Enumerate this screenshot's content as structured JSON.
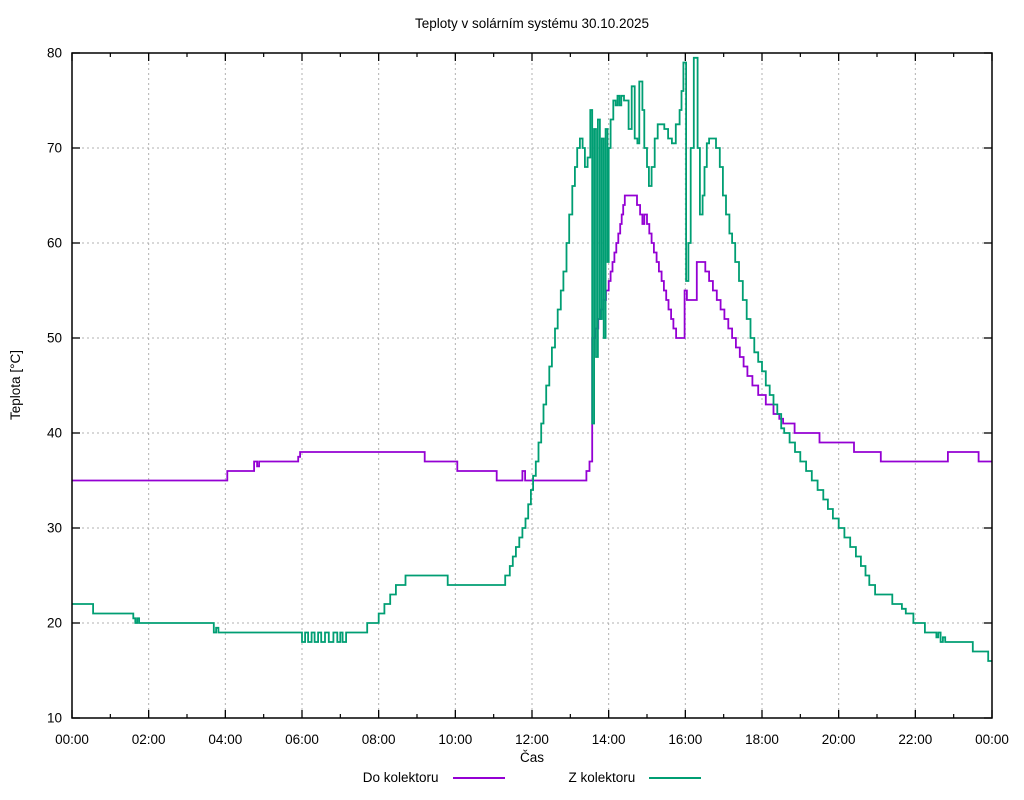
{
  "title": "Teploty v solárním systému 30.10.2025",
  "legend": {
    "items": [
      {
        "label": "Do kolektoru",
        "color": "#9400d3"
      },
      {
        "label": "Z kolektoru",
        "color": "#009e73"
      }
    ]
  },
  "chart_data": {
    "type": "line",
    "step_mode": "post",
    "title": "Teploty v solárním systému 30.10.2025",
    "xlabel": "Čas",
    "ylabel": "Teplota [°C]",
    "x_unit": "hours",
    "xlim": [
      0,
      24
    ],
    "ylim": [
      10,
      80
    ],
    "grid": true,
    "grid_color": "#b0b0b0",
    "legend_position": "bottom-center",
    "x_ticks": [
      [
        0,
        "00:00"
      ],
      [
        2,
        "02:00"
      ],
      [
        4,
        "04:00"
      ],
      [
        6,
        "06:00"
      ],
      [
        8,
        "08:00"
      ],
      [
        10,
        "10:00"
      ],
      [
        12,
        "12:00"
      ],
      [
        14,
        "14:00"
      ],
      [
        16,
        "16:00"
      ],
      [
        18,
        "18:00"
      ],
      [
        20,
        "20:00"
      ],
      [
        22,
        "22:00"
      ],
      [
        24,
        "00:00"
      ]
    ],
    "x_minor_ticks": [
      1,
      3,
      5,
      7,
      9,
      11,
      13,
      15,
      17,
      19,
      21,
      23
    ],
    "y_ticks": [
      10,
      20,
      30,
      40,
      50,
      60,
      70,
      80
    ],
    "series": [
      {
        "name": "Do kolektoru",
        "color": "#9400d3",
        "points": [
          [
            0,
            35
          ],
          [
            4.05,
            36
          ],
          [
            4.75,
            37
          ],
          [
            4.83,
            36.5
          ],
          [
            4.88,
            37
          ],
          [
            5.9,
            37.5
          ],
          [
            5.95,
            38
          ],
          [
            9.2,
            37
          ],
          [
            10.05,
            36
          ],
          [
            11.08,
            35
          ],
          [
            11.75,
            36
          ],
          [
            11.82,
            35
          ],
          [
            13.42,
            36
          ],
          [
            13.5,
            37
          ],
          [
            13.57,
            50
          ],
          [
            13.65,
            51
          ],
          [
            13.73,
            52
          ],
          [
            13.8,
            53
          ],
          [
            13.87,
            54
          ],
          [
            13.93,
            55
          ],
          [
            14.0,
            56
          ],
          [
            14.05,
            57
          ],
          [
            14.1,
            58
          ],
          [
            14.15,
            59
          ],
          [
            14.2,
            60
          ],
          [
            14.25,
            61
          ],
          [
            14.3,
            62
          ],
          [
            14.34,
            63
          ],
          [
            14.38,
            64
          ],
          [
            14.42,
            65
          ],
          [
            14.74,
            64
          ],
          [
            14.82,
            63
          ],
          [
            14.88,
            62
          ],
          [
            14.93,
            63
          ],
          [
            15.0,
            62
          ],
          [
            15.06,
            61
          ],
          [
            15.12,
            60
          ],
          [
            15.18,
            59
          ],
          [
            15.25,
            58
          ],
          [
            15.31,
            57
          ],
          [
            15.38,
            56
          ],
          [
            15.44,
            55
          ],
          [
            15.5,
            54
          ],
          [
            15.56,
            53
          ],
          [
            15.63,
            52
          ],
          [
            15.69,
            51
          ],
          [
            15.76,
            50
          ],
          [
            15.98,
            55
          ],
          [
            16.04,
            54
          ],
          [
            16.3,
            58
          ],
          [
            16.52,
            57
          ],
          [
            16.62,
            56
          ],
          [
            16.72,
            55
          ],
          [
            16.82,
            54
          ],
          [
            16.92,
            53
          ],
          [
            17.02,
            52
          ],
          [
            17.12,
            51
          ],
          [
            17.22,
            50
          ],
          [
            17.32,
            49
          ],
          [
            17.42,
            48
          ],
          [
            17.52,
            47
          ],
          [
            17.62,
            46
          ],
          [
            17.75,
            45
          ],
          [
            17.9,
            44
          ],
          [
            18.1,
            43
          ],
          [
            18.3,
            42
          ],
          [
            18.45,
            41.5
          ],
          [
            18.55,
            41
          ],
          [
            18.85,
            40
          ],
          [
            19.5,
            39
          ],
          [
            20.4,
            38
          ],
          [
            21.1,
            37
          ],
          [
            22.85,
            38
          ],
          [
            23.65,
            37
          ],
          [
            24,
            37
          ]
        ]
      },
      {
        "name": "Z kolektoru",
        "color": "#009e73",
        "points": [
          [
            0,
            22
          ],
          [
            0.55,
            21
          ],
          [
            1.6,
            20.5
          ],
          [
            1.65,
            20
          ],
          [
            1.7,
            20.5
          ],
          [
            1.75,
            20
          ],
          [
            3.7,
            19
          ],
          [
            3.76,
            19.5
          ],
          [
            3.82,
            19
          ],
          [
            6.0,
            18
          ],
          [
            6.08,
            19
          ],
          [
            6.16,
            18
          ],
          [
            6.25,
            19
          ],
          [
            6.33,
            18
          ],
          [
            6.42,
            19
          ],
          [
            6.5,
            18
          ],
          [
            6.6,
            19
          ],
          [
            6.7,
            18
          ],
          [
            6.82,
            19
          ],
          [
            6.92,
            18
          ],
          [
            7.0,
            19
          ],
          [
            7.06,
            18
          ],
          [
            7.15,
            19
          ],
          [
            7.7,
            20
          ],
          [
            8.0,
            21
          ],
          [
            8.15,
            22
          ],
          [
            8.3,
            23
          ],
          [
            8.45,
            24
          ],
          [
            8.7,
            25
          ],
          [
            9.8,
            24
          ],
          [
            11.3,
            25
          ],
          [
            11.42,
            26
          ],
          [
            11.5,
            27
          ],
          [
            11.58,
            28
          ],
          [
            11.67,
            29
          ],
          [
            11.75,
            30
          ],
          [
            11.83,
            31
          ],
          [
            11.9,
            32.5
          ],
          [
            11.97,
            34
          ],
          [
            12.03,
            35.5
          ],
          [
            12.1,
            37
          ],
          [
            12.17,
            39
          ],
          [
            12.24,
            41
          ],
          [
            12.3,
            43
          ],
          [
            12.37,
            45
          ],
          [
            12.45,
            47
          ],
          [
            12.52,
            49
          ],
          [
            12.6,
            51
          ],
          [
            12.67,
            53
          ],
          [
            12.75,
            55
          ],
          [
            12.82,
            57
          ],
          [
            12.9,
            60
          ],
          [
            12.97,
            63
          ],
          [
            13.05,
            66
          ],
          [
            13.12,
            68
          ],
          [
            13.18,
            70
          ],
          [
            13.25,
            71
          ],
          [
            13.32,
            70
          ],
          [
            13.38,
            68
          ],
          [
            13.45,
            69
          ],
          [
            13.52,
            74
          ],
          [
            13.57,
            41
          ],
          [
            13.62,
            72
          ],
          [
            13.67,
            48
          ],
          [
            13.72,
            73
          ],
          [
            13.77,
            52
          ],
          [
            13.82,
            71
          ],
          [
            13.87,
            50
          ],
          [
            13.92,
            72
          ],
          [
            13.97,
            58
          ],
          [
            14.0,
            70
          ],
          [
            14.05,
            73
          ],
          [
            14.12,
            75
          ],
          [
            14.18,
            74.5
          ],
          [
            14.23,
            75.5
          ],
          [
            14.28,
            74.5
          ],
          [
            14.33,
            75.5
          ],
          [
            14.4,
            75
          ],
          [
            14.52,
            72
          ],
          [
            14.6,
            76.5
          ],
          [
            14.68,
            71
          ],
          [
            14.75,
            70.5
          ],
          [
            14.8,
            77
          ],
          [
            14.88,
            74
          ],
          [
            14.93,
            70
          ],
          [
            15.0,
            68
          ],
          [
            15.05,
            66
          ],
          [
            15.12,
            68
          ],
          [
            15.2,
            71
          ],
          [
            15.28,
            72.5
          ],
          [
            15.45,
            72
          ],
          [
            15.55,
            71
          ],
          [
            15.65,
            70.5
          ],
          [
            15.75,
            72.5
          ],
          [
            15.85,
            74
          ],
          [
            15.9,
            76
          ],
          [
            15.95,
            79
          ],
          [
            16.02,
            56
          ],
          [
            16.08,
            60
          ],
          [
            16.14,
            70
          ],
          [
            16.22,
            79.5
          ],
          [
            16.32,
            70
          ],
          [
            16.38,
            63
          ],
          [
            16.45,
            65
          ],
          [
            16.5,
            68
          ],
          [
            16.56,
            70.5
          ],
          [
            16.62,
            71
          ],
          [
            16.8,
            70
          ],
          [
            16.9,
            68
          ],
          [
            16.98,
            65
          ],
          [
            17.06,
            63
          ],
          [
            17.15,
            61
          ],
          [
            17.22,
            60
          ],
          [
            17.3,
            58
          ],
          [
            17.4,
            56
          ],
          [
            17.5,
            54
          ],
          [
            17.6,
            52
          ],
          [
            17.7,
            50
          ],
          [
            17.8,
            48.5
          ],
          [
            17.9,
            47.5
          ],
          [
            18.0,
            46.5
          ],
          [
            18.1,
            45
          ],
          [
            18.2,
            44
          ],
          [
            18.3,
            43
          ],
          [
            18.4,
            42
          ],
          [
            18.5,
            40.5
          ],
          [
            18.58,
            40
          ],
          [
            18.72,
            39
          ],
          [
            18.86,
            38
          ],
          [
            19.0,
            37
          ],
          [
            19.15,
            36
          ],
          [
            19.3,
            35
          ],
          [
            19.45,
            34
          ],
          [
            19.6,
            33
          ],
          [
            19.72,
            32
          ],
          [
            19.85,
            31
          ],
          [
            20.0,
            30
          ],
          [
            20.15,
            29
          ],
          [
            20.3,
            28
          ],
          [
            20.45,
            27
          ],
          [
            20.58,
            26
          ],
          [
            20.7,
            25
          ],
          [
            20.8,
            24
          ],
          [
            20.95,
            23
          ],
          [
            21.4,
            22
          ],
          [
            21.65,
            21.5
          ],
          [
            21.75,
            21
          ],
          [
            21.95,
            20
          ],
          [
            22.25,
            19
          ],
          [
            22.55,
            18.5
          ],
          [
            22.6,
            19
          ],
          [
            22.66,
            18
          ],
          [
            22.72,
            18.5
          ],
          [
            22.78,
            18
          ],
          [
            23.5,
            17
          ],
          [
            23.9,
            16
          ],
          [
            24,
            16
          ]
        ]
      }
    ]
  }
}
